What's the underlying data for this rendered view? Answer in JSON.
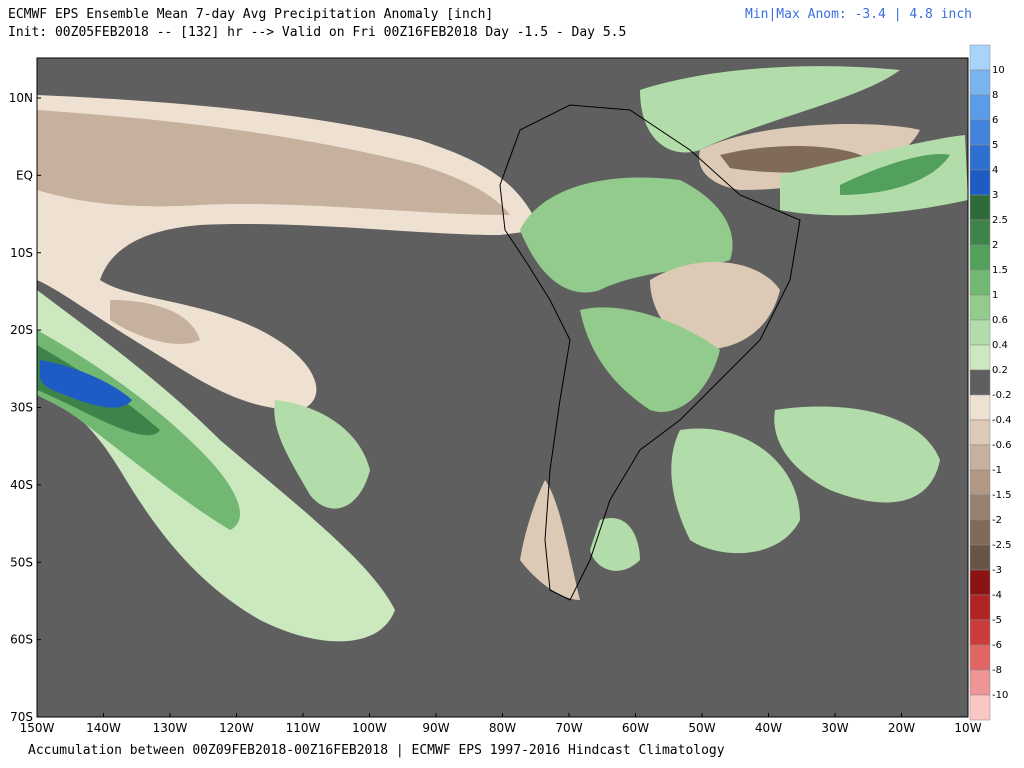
{
  "header": {
    "title": "ECMWF EPS Ensemble Mean 7-day Avg Precipitation Anomaly [inch]",
    "init": "Init: 00Z05FEB2018 -- [132] hr --> Valid on Fri 00Z16FEB2018  Day -1.5 - Day 5.5",
    "minmax": "Min|Max Anom: -3.4 | 4.8 inch"
  },
  "map": {
    "lat_labels": [
      "10N",
      "EQ",
      "10S",
      "20S",
      "30S",
      "40S",
      "50S",
      "60S",
      "70S"
    ],
    "lon_labels": [
      "150W",
      "140W",
      "130W",
      "120W",
      "110W",
      "100W",
      "90W",
      "80W",
      "70W",
      "60W",
      "50W",
      "40W",
      "30W",
      "20W",
      "10W"
    ]
  },
  "colorbar": {
    "labels": [
      "10",
      "8",
      "6",
      "5",
      "4",
      "3",
      "2.5",
      "2",
      "1.5",
      "1",
      "0.6",
      "0.4",
      "0.2",
      "-0.2",
      "-0.4",
      "-0.6",
      "-1",
      "-1.5",
      "-2",
      "-2.5",
      "-3",
      "-4",
      "-5",
      "-6",
      "-8",
      "-10"
    ],
    "colors": [
      "#a8d4fa",
      "#78b4f0",
      "#5a9ce8",
      "#4284dc",
      "#2e70d2",
      "#1c5cc4",
      "#2f6a3a",
      "#3e844a",
      "#52a05c",
      "#72b872",
      "#93cb8d",
      "#b2dca9",
      "#cbe8bf",
      "#5f5f5f",
      "#efe1d2",
      "#dccab7",
      "#c6b09e",
      "#b09885",
      "#98806e",
      "#806a59",
      "#675445",
      "#8a1414",
      "#b02424",
      "#cc3c3c",
      "#e06666",
      "#ee9696",
      "#fac6c6"
    ]
  },
  "footer": "Accumulation between 00Z09FEB2018-00Z16FEB2018 | ECMWF EPS 1997-2016 Hindcast Climatology"
}
